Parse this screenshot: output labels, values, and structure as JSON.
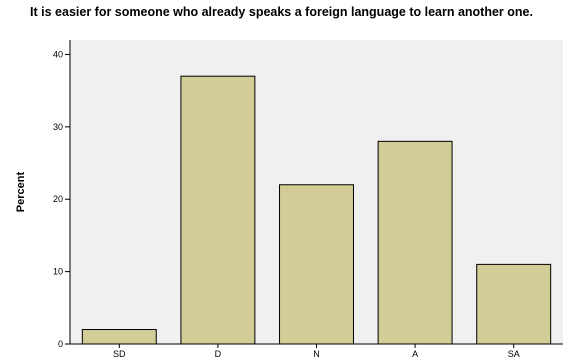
{
  "chart_data": {
    "type": "bar",
    "title": "It is easier for someone who already speaks a foreign language to learn another one.",
    "xlabel": "",
    "ylabel": "Percent",
    "categories": [
      "SD",
      "D",
      "N",
      "A",
      "SA"
    ],
    "values": [
      2,
      37,
      22,
      28,
      11
    ],
    "ylim": [
      0,
      42
    ],
    "yticks": [
      0,
      10,
      20,
      30,
      40
    ],
    "grid": false,
    "colors": {
      "bar_fill": "#d2cd96",
      "bar_stroke": "#000000",
      "plot_background": "#f0f0f0",
      "axis": "#000000"
    }
  }
}
